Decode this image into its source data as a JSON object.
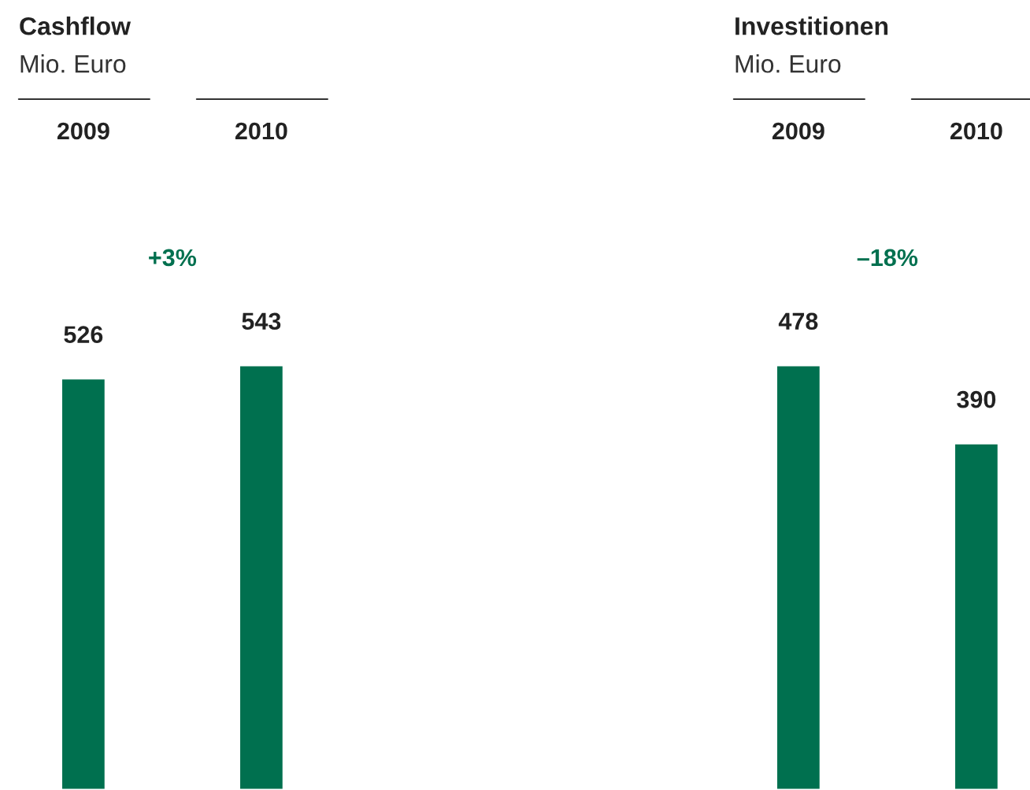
{
  "chart_data": [
    {
      "type": "bar",
      "title": "Cashflow",
      "subtitle": "Mio. Euro",
      "categories": [
        "2009",
        "2010"
      ],
      "values": [
        526,
        543
      ],
      "color": "#00704f",
      "data_labels": true,
      "annotations": [
        "+3%"
      ]
    },
    {
      "type": "bar",
      "title": "Investitionen",
      "subtitle": "Mio. Euro",
      "categories": [
        "2009",
        "2010"
      ],
      "values": [
        478,
        390
      ],
      "color": "#00704f",
      "data_labels": true,
      "annotations": [
        "–18%"
      ]
    }
  ]
}
